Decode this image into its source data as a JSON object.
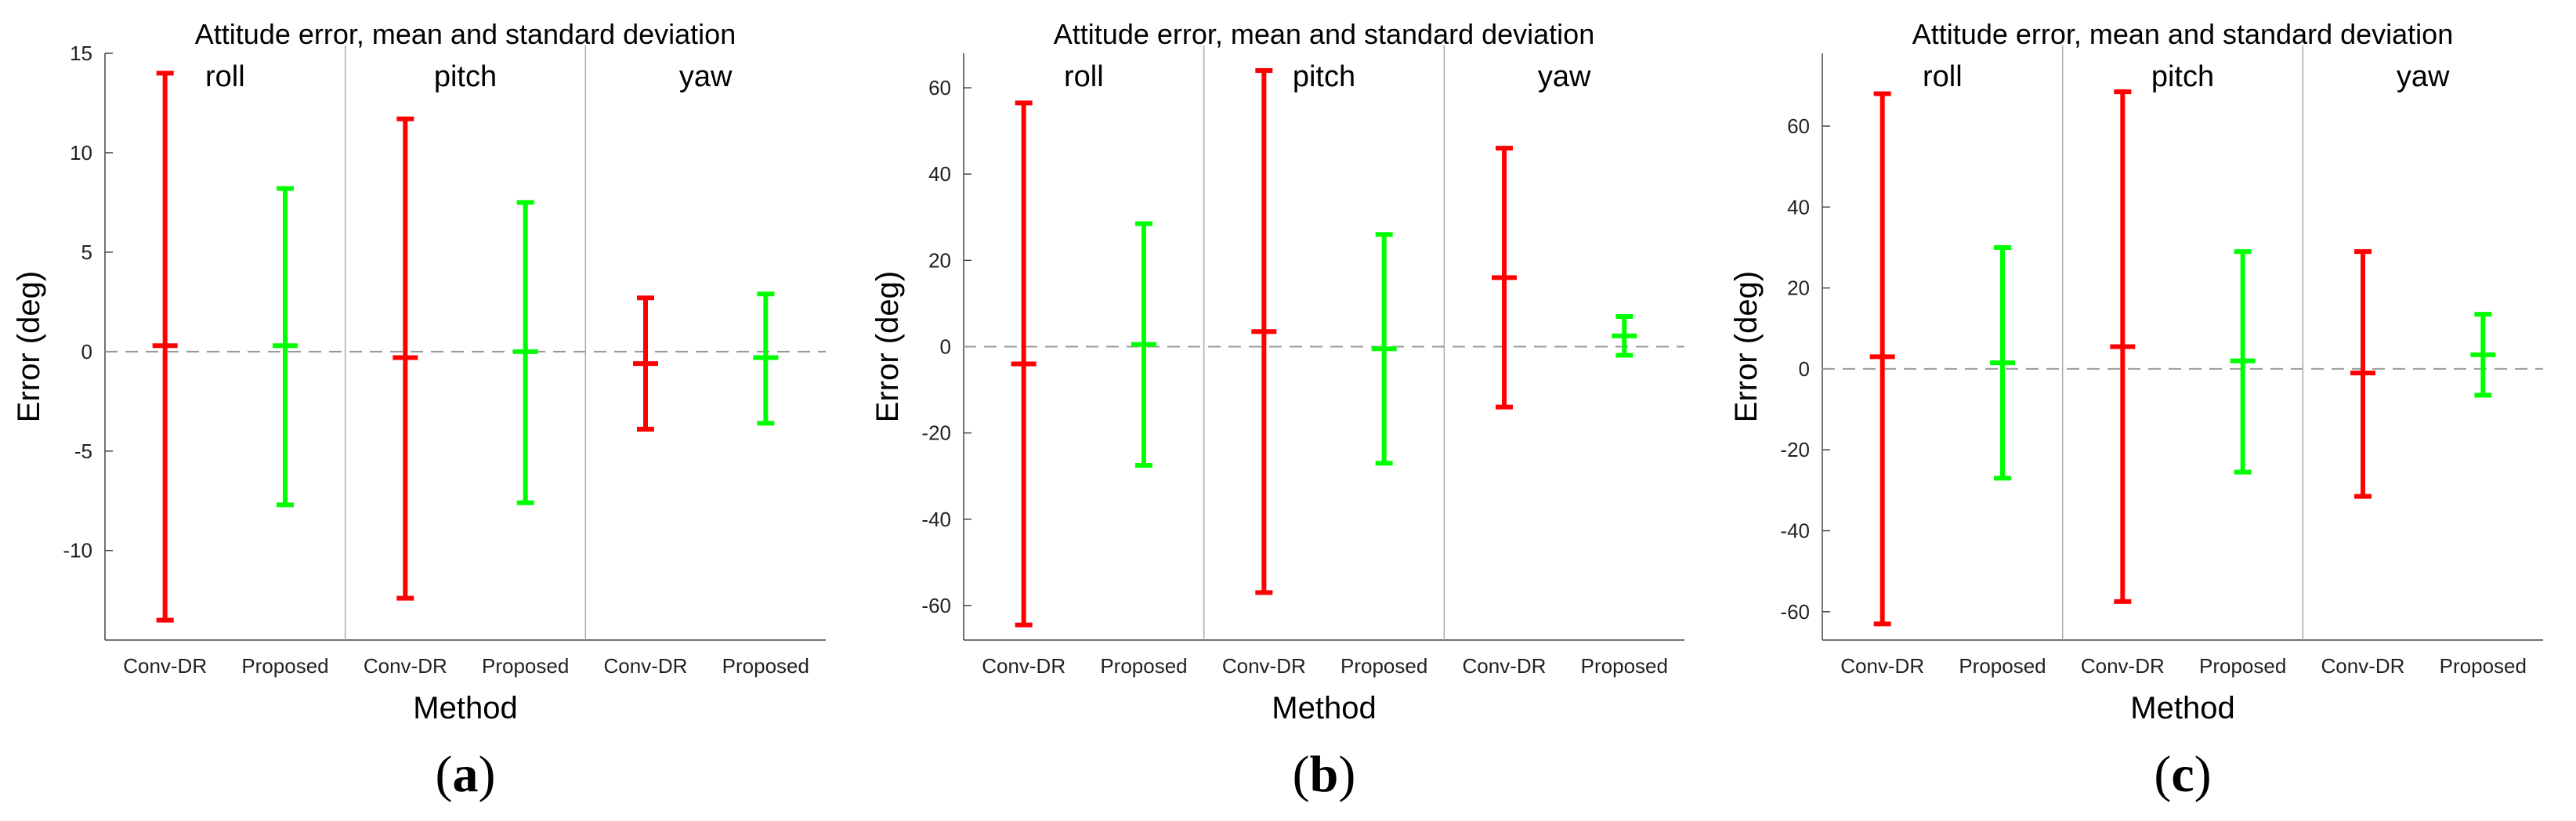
{
  "chart_data": [
    {
      "type": "errorbar",
      "panel_label": "a",
      "title": "Attitude error, mean and standard deviation",
      "xlabel": "Method",
      "ylabel": "Error (deg)",
      "ylim": [
        -14.5,
        15
      ],
      "yticks": [
        -10,
        -5,
        0,
        5,
        10,
        15
      ],
      "groups": [
        "roll",
        "pitch",
        "yaw"
      ],
      "methods": [
        "Conv-DR",
        "Proposed"
      ],
      "method_colors": [
        "#ff0000",
        "#00ff00"
      ],
      "zero_line": true,
      "values": [
        {
          "group": "roll",
          "method": "Conv-DR",
          "mean": 0.3,
          "low": -13.5,
          "high": 14.0
        },
        {
          "group": "roll",
          "method": "Proposed",
          "mean": 0.3,
          "low": -7.7,
          "high": 8.2
        },
        {
          "group": "pitch",
          "method": "Conv-DR",
          "mean": -0.3,
          "low": -12.4,
          "high": 11.7
        },
        {
          "group": "pitch",
          "method": "Proposed",
          "mean": 0.0,
          "low": -7.6,
          "high": 7.5
        },
        {
          "group": "yaw",
          "method": "Conv-DR",
          "mean": -0.6,
          "low": -3.9,
          "high": 2.7
        },
        {
          "group": "yaw",
          "method": "Proposed",
          "mean": -0.3,
          "low": -3.6,
          "high": 2.9
        }
      ]
    },
    {
      "type": "errorbar",
      "panel_label": "b",
      "title": "Attitude error, mean and standard deviation",
      "xlabel": "Method",
      "ylabel": "Error (deg)",
      "ylim": [
        -68,
        68
      ],
      "yticks": [
        -60,
        -40,
        -20,
        0,
        20,
        40,
        60
      ],
      "groups": [
        "roll",
        "pitch",
        "yaw"
      ],
      "methods": [
        "Conv-DR",
        "Proposed"
      ],
      "method_colors": [
        "#ff0000",
        "#00ff00"
      ],
      "zero_line": true,
      "values": [
        {
          "group": "roll",
          "method": "Conv-DR",
          "mean": -4,
          "low": -64.5,
          "high": 56.5
        },
        {
          "group": "roll",
          "method": "Proposed",
          "mean": 0.5,
          "low": -27.5,
          "high": 28.5
        },
        {
          "group": "pitch",
          "method": "Conv-DR",
          "mean": 3.5,
          "low": -57.0,
          "high": 64.0
        },
        {
          "group": "pitch",
          "method": "Proposed",
          "mean": -0.5,
          "low": -27.0,
          "high": 26.0
        },
        {
          "group": "yaw",
          "method": "Conv-DR",
          "mean": 16,
          "low": -14.0,
          "high": 46.0
        },
        {
          "group": "yaw",
          "method": "Proposed",
          "mean": 2.5,
          "low": -2.0,
          "high": 7.0
        }
      ]
    },
    {
      "type": "errorbar",
      "panel_label": "c",
      "title": "Attitude error, mean and standard deviation",
      "xlabel": "Method",
      "ylabel": "Error (deg)",
      "ylim": [
        -67,
        78
      ],
      "yticks": [
        -60,
        -40,
        -20,
        0,
        20,
        40,
        60
      ],
      "groups": [
        "roll",
        "pitch",
        "yaw"
      ],
      "methods": [
        "Conv-DR",
        "Proposed"
      ],
      "method_colors": [
        "#ff0000",
        "#00ff00"
      ],
      "zero_line": true,
      "values": [
        {
          "group": "roll",
          "method": "Conv-DR",
          "mean": 3,
          "low": -63,
          "high": 68
        },
        {
          "group": "roll",
          "method": "Proposed",
          "mean": 1.5,
          "low": -27,
          "high": 30
        },
        {
          "group": "pitch",
          "method": "Conv-DR",
          "mean": 5.5,
          "low": -57.5,
          "high": 68.5
        },
        {
          "group": "pitch",
          "method": "Proposed",
          "mean": 2,
          "low": -25.5,
          "high": 29
        },
        {
          "group": "yaw",
          "method": "Conv-DR",
          "mean": -1,
          "low": -31.5,
          "high": 29
        },
        {
          "group": "yaw",
          "method": "Proposed",
          "mean": 3.5,
          "low": -6.5,
          "high": 13.5
        }
      ]
    }
  ]
}
